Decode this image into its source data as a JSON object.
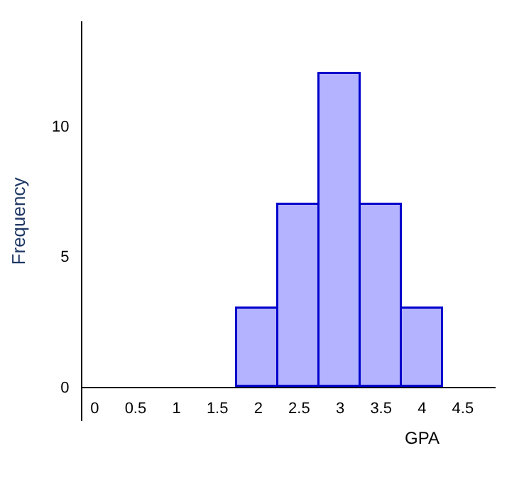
{
  "chart_data": {
    "type": "histogram",
    "xlabel": "GPA",
    "ylabel": "Frequency",
    "bins": [
      1.75,
      2.25,
      2.75,
      3.25,
      3.75,
      4.25
    ],
    "values": [
      3,
      7,
      12,
      7,
      3
    ],
    "color": "#b3b3ff",
    "xlim": [
      -0.15,
      4.9
    ],
    "xticks": [
      0,
      0.5,
      1,
      1.5,
      2,
      2.5,
      3,
      3.5,
      4,
      4.5
    ],
    "ylim": [
      -1.3,
      14
    ],
    "yticks": [
      0,
      5,
      10
    ]
  }
}
